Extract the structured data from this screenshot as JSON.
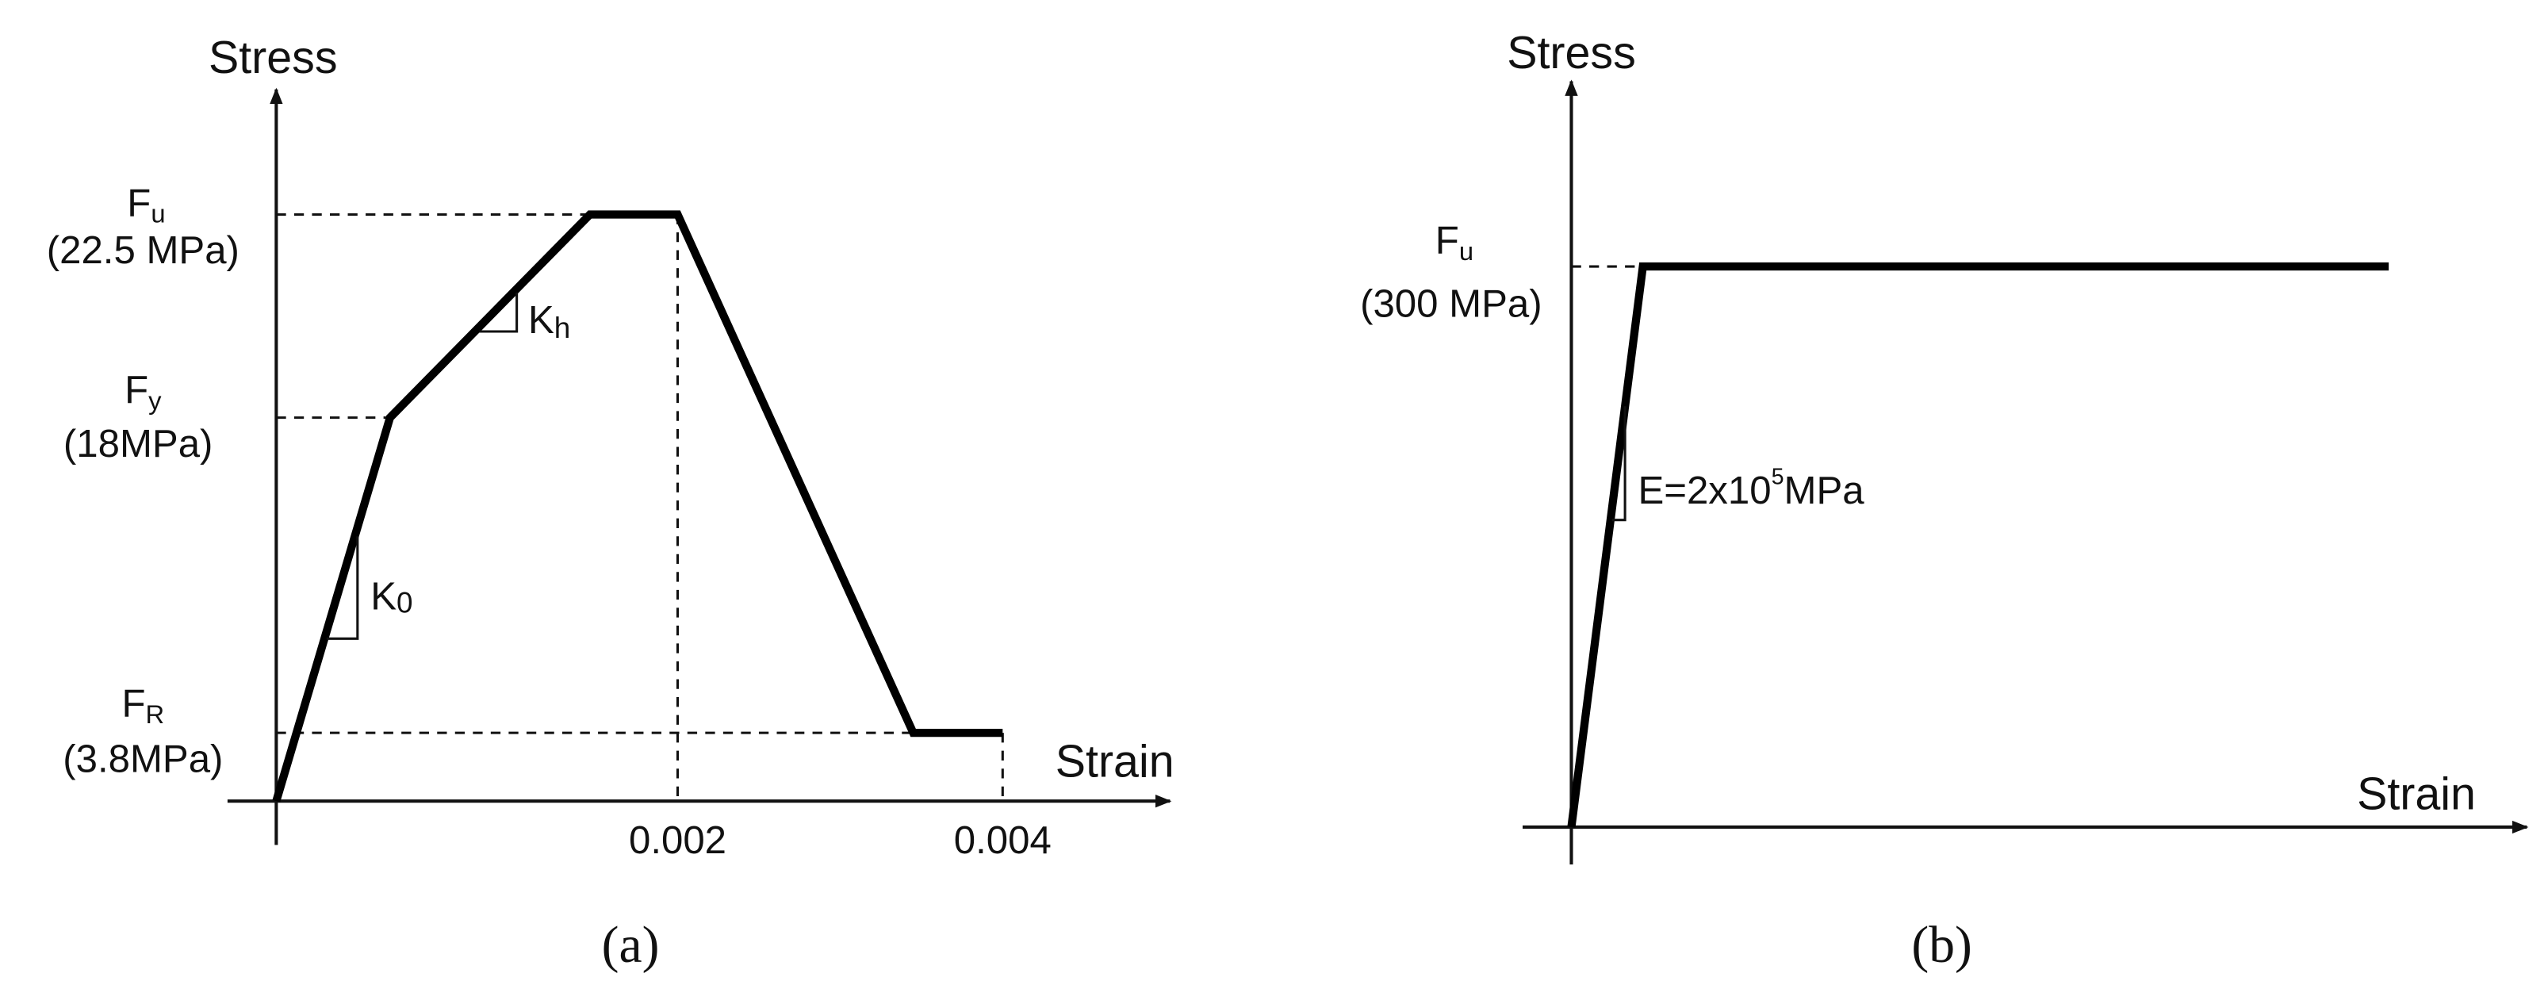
{
  "panel_a": {
    "y_axis_label": "Stress",
    "x_axis_label": "Strain",
    "fu": {
      "symbol": "F",
      "subscript": "u",
      "value": "(22.5 MPa)"
    },
    "fy": {
      "symbol": "F",
      "subscript": "y",
      "value": "(18MPa)"
    },
    "fr": {
      "symbol": "F",
      "subscript": "R",
      "value": "(3.8MPa)"
    },
    "k0": {
      "symbol": "K",
      "subscript": "0"
    },
    "kh": {
      "symbol": "K",
      "subscript": "h"
    },
    "x_ticks": [
      "0.002",
      "0.004"
    ],
    "caption": "(a)"
  },
  "panel_b": {
    "y_axis_label": "Stress",
    "x_axis_label": "Strain",
    "fu": {
      "symbol": "F",
      "subscript": "u",
      "value": "(300 MPa)"
    },
    "modulus": {
      "base": "E=2x10",
      "exponent": "5",
      "unit": "MPa"
    },
    "caption": "(b)"
  }
}
